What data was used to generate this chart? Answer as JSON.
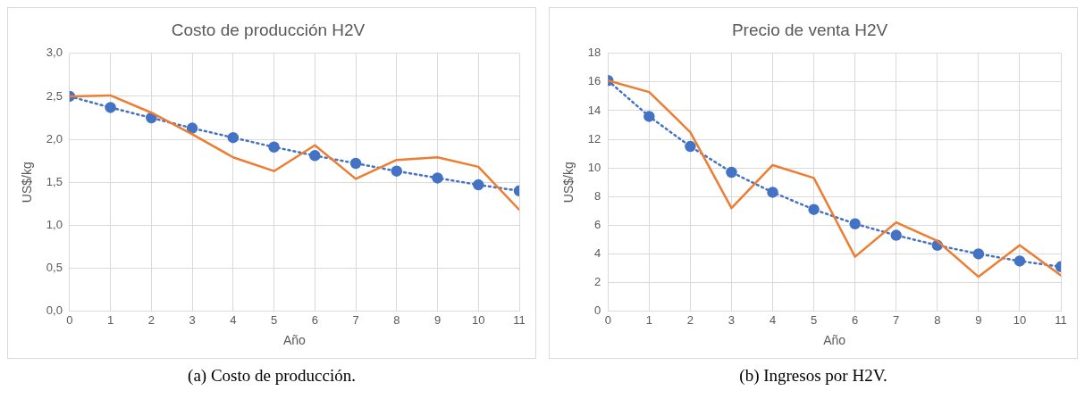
{
  "chart_data": [
    {
      "type": "line",
      "title": "Costo de producción H2V",
      "xlabel": "Año",
      "ylabel": "US$/kg",
      "x": [
        0,
        1,
        2,
        3,
        4,
        5,
        6,
        7,
        8,
        9,
        10,
        11
      ],
      "xlim": [
        0,
        11
      ],
      "xticks": [
        0,
        1,
        2,
        3,
        4,
        5,
        6,
        7,
        8,
        9,
        10,
        11
      ],
      "ylim": [
        0,
        3
      ],
      "yticks": [
        {
          "value": 0,
          "label": "0,0"
        },
        {
          "value": 0.5,
          "label": "0,5"
        },
        {
          "value": 1,
          "label": "1,0"
        },
        {
          "value": 1.5,
          "label": "1,5"
        },
        {
          "value": 2,
          "label": "2,0"
        },
        {
          "value": 2.5,
          "label": "2,5"
        },
        {
          "value": 3,
          "label": "3,0"
        }
      ],
      "grid": true,
      "legend": false,
      "annotations": [
        "(a) Costo de producción."
      ],
      "series": [
        {
          "color": "#4472c4",
          "marker": "circle",
          "line_style": "dotted",
          "values": [
            2.5,
            2.37,
            2.25,
            2.13,
            2.02,
            1.91,
            1.81,
            1.72,
            1.63,
            1.55,
            1.47,
            1.4
          ]
        },
        {
          "color": "#ed7d31",
          "marker": "none",
          "line_style": "solid",
          "values": [
            2.5,
            2.51,
            2.31,
            2.06,
            1.79,
            1.63,
            1.93,
            1.54,
            1.76,
            1.79,
            1.68,
            1.18
          ]
        }
      ]
    },
    {
      "type": "line",
      "title": "Precio de venta H2V",
      "xlabel": "Año",
      "ylabel": "US$/kg",
      "x": [
        0,
        1,
        2,
        3,
        4,
        5,
        6,
        7,
        8,
        9,
        10,
        11
      ],
      "xlim": [
        0,
        11
      ],
      "xticks": [
        0,
        1,
        2,
        3,
        4,
        5,
        6,
        7,
        8,
        9,
        10,
        11
      ],
      "ylim": [
        0,
        18
      ],
      "yticks": [
        0,
        2,
        4,
        6,
        8,
        10,
        12,
        14,
        16,
        18
      ],
      "grid": true,
      "legend": false,
      "annotations": [
        "(b) Ingresos por H2V."
      ],
      "series": [
        {
          "color": "#4472c4",
          "marker": "circle",
          "line_style": "dotted",
          "values": [
            16.1,
            13.6,
            11.5,
            9.7,
            8.3,
            7.1,
            6.1,
            5.3,
            4.6,
            4.0,
            3.5,
            3.1
          ]
        },
        {
          "color": "#ed7d31",
          "marker": "none",
          "line_style": "solid",
          "values": [
            16.1,
            15.3,
            12.5,
            7.2,
            10.2,
            9.3,
            3.8,
            6.2,
            4.9,
            2.4,
            4.6,
            2.5
          ]
        }
      ]
    }
  ]
}
